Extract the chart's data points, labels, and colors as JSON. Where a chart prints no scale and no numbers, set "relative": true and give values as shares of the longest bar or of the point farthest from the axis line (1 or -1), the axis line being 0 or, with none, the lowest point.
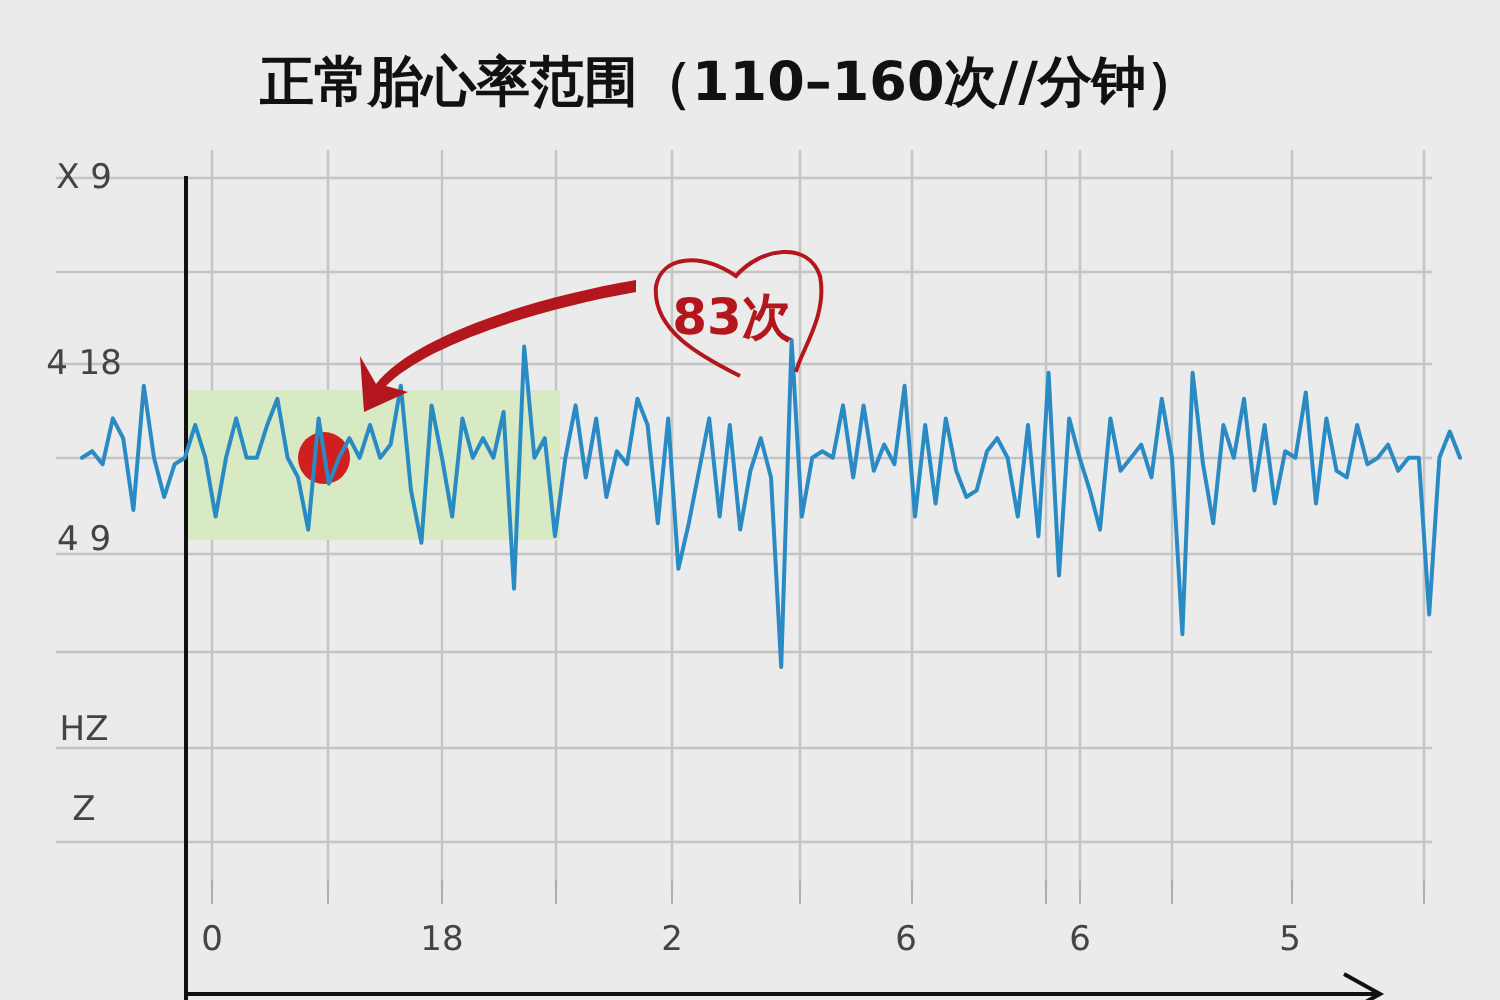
{
  "chart_data": {
    "type": "line",
    "title": "正常胎心率范围（110–160次//分钟）",
    "relative": true,
    "grid": true,
    "categories": [
      null,
      null,
      null,
      null,
      null,
      null,
      null,
      null,
      null,
      null,
      null,
      null,
      null,
      null,
      null,
      null,
      null,
      null,
      null,
      null,
      null,
      null,
      null,
      null,
      null,
      null,
      null,
      null,
      null,
      null,
      null,
      null,
      null,
      null,
      null,
      null,
      null,
      null,
      null,
      null,
      null,
      null,
      null,
      null,
      null,
      null,
      null,
      null,
      null,
      null,
      null,
      null,
      null,
      null,
      null,
      null,
      null,
      null,
      null,
      null,
      null,
      null,
      null,
      null,
      null,
      null,
      null,
      null,
      null,
      null,
      null,
      null,
      null,
      null,
      null,
      null,
      null,
      null,
      null,
      null,
      null,
      null,
      null,
      null,
      null,
      null,
      null,
      null,
      null,
      null,
      null,
      null,
      null,
      null,
      null,
      null,
      null,
      null,
      null,
      null,
      null,
      null,
      null,
      null,
      null,
      null,
      null,
      null,
      null,
      null,
      null,
      null,
      null,
      null,
      null,
      null,
      null,
      null,
      null,
      null,
      null,
      null,
      null,
      null,
      null,
      null,
      null,
      null,
      null,
      null,
      null,
      null,
      null,
      null,
      null
    ],
    "annotations": [
      "X 9",
      "4 18",
      "4 9",
      "HZ",
      "Z",
      "0",
      "18",
      "2",
      "6",
      "6",
      "5",
      "83次"
    ],
    "series": [
      {
        "color": "#2a8ac4",
        "values": [
          0.82,
          0.83,
          0.81,
          0.88,
          0.85,
          0.74,
          0.93,
          0.82,
          0.76,
          0.81,
          0.82,
          0.87,
          0.82,
          0.73,
          0.82,
          0.88,
          0.82,
          0.82,
          0.87,
          0.91,
          0.82,
          0.79,
          0.71,
          0.88,
          0.78,
          0.82,
          0.85,
          0.82,
          0.87,
          0.82,
          0.84,
          0.93,
          0.77,
          0.69,
          0.9,
          0.82,
          0.73,
          0.88,
          0.82,
          0.85,
          0.82,
          0.89,
          0.62,
          0.99,
          0.82,
          0.85,
          0.7,
          0.82,
          0.9,
          0.79,
          0.88,
          0.76,
          0.83,
          0.81,
          0.91,
          0.87,
          0.72,
          0.88,
          0.65,
          0.72,
          0.8,
          0.88,
          0.73,
          0.87,
          0.71,
          0.8,
          0.85,
          0.79,
          0.5,
          1.0,
          0.73,
          0.82,
          0.83,
          0.82,
          0.9,
          0.79,
          0.9,
          0.8,
          0.84,
          0.81,
          0.93,
          0.73,
          0.87,
          0.75,
          0.88,
          0.8,
          0.76,
          0.77,
          0.83,
          0.85,
          0.82,
          0.73,
          0.87,
          0.7,
          0.95,
          0.64,
          0.88,
          0.82,
          0.77,
          0.71,
          0.88,
          0.8,
          0.82,
          0.84,
          0.79,
          0.91,
          0.82,
          0.55,
          0.95,
          0.81,
          0.72,
          0.87,
          0.82,
          0.91,
          0.77,
          0.87,
          0.75,
          0.83,
          0.82,
          0.92,
          0.75,
          0.88,
          0.8,
          0.79,
          0.87,
          0.81,
          0.82,
          0.84,
          0.8,
          0.82,
          0.82,
          0.58,
          0.82,
          0.86,
          0.82
        ]
      }
    ]
  }
}
